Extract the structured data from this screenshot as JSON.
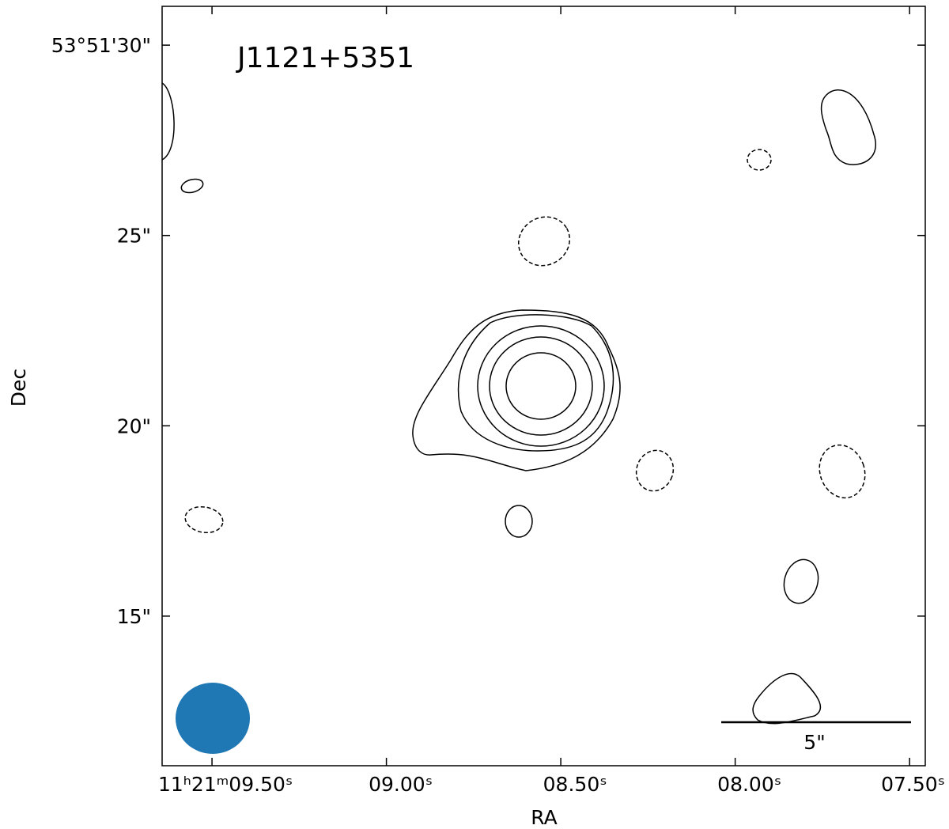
{
  "chart_data": {
    "type": "contour",
    "title": "J1121+5351",
    "x_label": "RA",
    "y_label": "Dec",
    "scale_bar_label": "5\"",
    "beam_color": "#1f77b4",
    "xlim": [
      9.643,
      7.455
    ],
    "ylim": [
      11.07,
      31.02
    ],
    "xticks": [
      {
        "value": 9.5,
        "label": "11ʰ21ᵐ09.50ˢ"
      },
      {
        "value": 9.0,
        "label": "09.00ˢ"
      },
      {
        "value": 8.5,
        "label": "08.50ˢ"
      },
      {
        "value": 8.0,
        "label": "08.00ˢ"
      },
      {
        "value": 7.5,
        "label": "07.50ˢ"
      }
    ],
    "yticks": [
      {
        "value": 30,
        "label": "53°51'30\""
      },
      {
        "value": 25,
        "label": "25\""
      },
      {
        "value": 20,
        "label": "20\""
      },
      {
        "value": 15,
        "label": "15\""
      }
    ]
  }
}
